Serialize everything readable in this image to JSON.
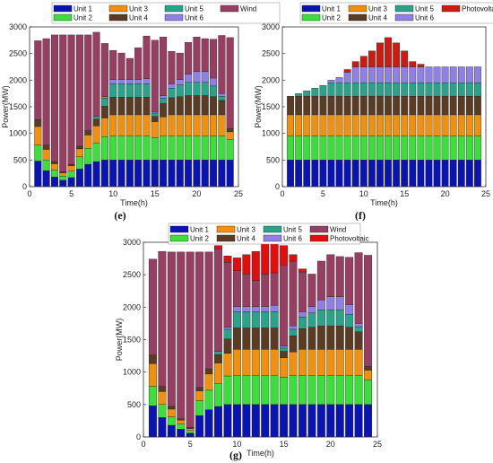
{
  "chart_data": [
    {
      "type": "bar",
      "stacked": true,
      "panel_label": "(e)",
      "xlabel": "Time(h)",
      "ylabel": "Power(MW)",
      "x": [
        1,
        2,
        3,
        4,
        5,
        6,
        7,
        8,
        9,
        10,
        11,
        12,
        13,
        14,
        15,
        16,
        17,
        18,
        19,
        20,
        21,
        22,
        23,
        24
      ],
      "xlim": [
        0,
        25
      ],
      "ylim": [
        0,
        3000
      ],
      "xticks": [
        "0",
        "5",
        "10",
        "15",
        "20",
        "25"
      ],
      "yticks": [
        "0",
        "500",
        "1000",
        "1500",
        "2000",
        "2500",
        "3000"
      ],
      "legend_entries": [
        "Unit 1",
        "Unit 2",
        "Unit 3",
        "Unit 4",
        "Unit 5",
        "Unit 6",
        "Wind"
      ],
      "legend_placement": "top",
      "series": [
        {
          "name": "Unit 1",
          "color": "#0a14b4",
          "values": [
            480,
            300,
            180,
            120,
            170,
            330,
            420,
            470,
            500,
            500,
            500,
            500,
            500,
            500,
            500,
            500,
            500,
            500,
            500,
            500,
            500,
            500,
            500,
            500
          ]
        },
        {
          "name": "Unit 2",
          "color": "#3adf3a",
          "values": [
            300,
            200,
            130,
            80,
            120,
            230,
            300,
            350,
            440,
            450,
            450,
            450,
            450,
            450,
            420,
            450,
            450,
            450,
            450,
            450,
            450,
            450,
            450,
            380
          ]
        },
        {
          "name": "Unit 3",
          "color": "#f0900c",
          "values": [
            350,
            200,
            120,
            60,
            100,
            150,
            250,
            320,
            350,
            400,
            400,
            400,
            400,
            400,
            300,
            360,
            400,
            400,
            400,
            400,
            400,
            400,
            400,
            150
          ]
        },
        {
          "name": "Unit 4",
          "color": "#5a3c24",
          "values": [
            130,
            80,
            40,
            20,
            30,
            50,
            80,
            130,
            220,
            330,
            330,
            330,
            330,
            330,
            100,
            250,
            320,
            340,
            360,
            360,
            360,
            340,
            270,
            60
          ]
        },
        {
          "name": "Unit 5",
          "color": "#29a389",
          "values": [
            0,
            0,
            0,
            0,
            0,
            0,
            0,
            50,
            150,
            250,
            250,
            250,
            250,
            250,
            50,
            100,
            180,
            220,
            250,
            250,
            250,
            200,
            80,
            0
          ]
        },
        {
          "name": "Unit 6",
          "color": "#8f7fe6",
          "values": [
            0,
            0,
            0,
            0,
            0,
            0,
            0,
            0,
            30,
            80,
            80,
            80,
            80,
            100,
            30,
            50,
            80,
            100,
            150,
            200,
            200,
            150,
            50,
            0
          ]
        },
        {
          "name": "Wind",
          "color": "#973e62",
          "values": [
            1480,
            2000,
            2380,
            2570,
            2430,
            2090,
            1800,
            1580,
            1000,
            550,
            500,
            400,
            600,
            800,
            1350,
            1100,
            610,
            500,
            600,
            650,
            620,
            730,
            1090,
            1710
          ]
        }
      ]
    },
    {
      "type": "bar",
      "stacked": true,
      "panel_label": "(f)",
      "xlabel": "Time(h)",
      "ylabel": "Power(MW)",
      "x": [
        1,
        2,
        3,
        4,
        5,
        6,
        7,
        8,
        9,
        10,
        11,
        12,
        13,
        14,
        15,
        16,
        17,
        18,
        19,
        20,
        21,
        22,
        23,
        24
      ],
      "xlim": [
        0,
        25
      ],
      "ylim": [
        0,
        3000
      ],
      "xticks": [
        "0",
        "5",
        "10",
        "15",
        "20",
        "25"
      ],
      "yticks": [
        "0",
        "500",
        "1000",
        "1500",
        "2000",
        "2500",
        "3000"
      ],
      "legend_entries": [
        "Unit 1",
        "Unit 2",
        "Unit 3",
        "Unit 4",
        "Unit 5",
        "Unit 6",
        "Photovoltaic"
      ],
      "legend_placement": "top",
      "series": [
        {
          "name": "Unit 1",
          "color": "#0a14b4",
          "values": [
            500,
            500,
            500,
            500,
            500,
            500,
            500,
            500,
            500,
            500,
            500,
            500,
            500,
            500,
            500,
            500,
            500,
            500,
            500,
            500,
            500,
            500,
            500,
            500
          ]
        },
        {
          "name": "Unit 2",
          "color": "#3adf3a",
          "values": [
            450,
            450,
            450,
            450,
            450,
            450,
            450,
            450,
            450,
            450,
            450,
            450,
            450,
            450,
            450,
            450,
            450,
            450,
            450,
            450,
            450,
            450,
            450,
            450
          ]
        },
        {
          "name": "Unit 3",
          "color": "#f0900c",
          "values": [
            400,
            400,
            400,
            400,
            400,
            400,
            400,
            400,
            400,
            400,
            400,
            400,
            400,
            400,
            400,
            400,
            400,
            400,
            400,
            400,
            400,
            400,
            400,
            400
          ]
        },
        {
          "name": "Unit 4",
          "color": "#5a3c24",
          "values": [
            350,
            350,
            350,
            350,
            350,
            350,
            350,
            350,
            350,
            350,
            350,
            350,
            350,
            350,
            350,
            350,
            350,
            350,
            350,
            350,
            350,
            350,
            350,
            350
          ]
        },
        {
          "name": "Unit 5",
          "color": "#29a389",
          "values": [
            0,
            50,
            100,
            150,
            200,
            250,
            250,
            250,
            250,
            250,
            250,
            250,
            250,
            250,
            250,
            250,
            250,
            250,
            250,
            250,
            250,
            250,
            250,
            250
          ]
        },
        {
          "name": "Unit 6",
          "color": "#8f7fe6",
          "values": [
            0,
            0,
            0,
            0,
            0,
            50,
            100,
            200,
            300,
            300,
            300,
            300,
            300,
            300,
            300,
            300,
            300,
            300,
            300,
            300,
            300,
            300,
            300,
            300
          ]
        },
        {
          "name": "Photovoltaic",
          "color": "#d01a10",
          "values": [
            0,
            0,
            0,
            0,
            0,
            0,
            0,
            50,
            100,
            200,
            300,
            450,
            550,
            450,
            300,
            100,
            50,
            0,
            0,
            0,
            0,
            0,
            0,
            0
          ]
        }
      ]
    },
    {
      "type": "bar",
      "stacked": true,
      "panel_label": "(g)",
      "xlabel": "Time(h)",
      "ylabel": "Power(MW)",
      "x": [
        1,
        2,
        3,
        4,
        5,
        6,
        7,
        8,
        9,
        10,
        11,
        12,
        13,
        14,
        15,
        16,
        17,
        18,
        19,
        20,
        21,
        22,
        23,
        24
      ],
      "xlim": [
        0,
        25
      ],
      "ylim": [
        0,
        3000
      ],
      "xticks": [
        "0",
        "5",
        "10",
        "15",
        "20",
        "25"
      ],
      "yticks": [
        "0",
        "500",
        "1000",
        "1500",
        "2000",
        "2500",
        "3000"
      ],
      "legend_entries": [
        "Unit 1",
        "Unit 2",
        "Unit 3",
        "Unit 4",
        "Unit 5",
        "Unit 6",
        "Wind",
        "Photovoltaic"
      ],
      "legend_placement": "top",
      "series": [
        {
          "name": "Unit 1",
          "color": "#0a14b4",
          "values": [
            480,
            300,
            180,
            120,
            60,
            330,
            420,
            470,
            500,
            500,
            500,
            500,
            500,
            500,
            500,
            500,
            500,
            500,
            500,
            500,
            500,
            500,
            500,
            500
          ]
        },
        {
          "name": "Unit 2",
          "color": "#3adf3a",
          "values": [
            300,
            200,
            130,
            80,
            40,
            230,
            300,
            350,
            440,
            450,
            450,
            450,
            450,
            450,
            420,
            450,
            450,
            450,
            450,
            450,
            450,
            450,
            450,
            380
          ]
        },
        {
          "name": "Unit 3",
          "color": "#f0900c",
          "values": [
            350,
            200,
            120,
            60,
            30,
            150,
            250,
            320,
            350,
            400,
            400,
            400,
            400,
            400,
            300,
            360,
            400,
            400,
            400,
            400,
            400,
            400,
            400,
            150
          ]
        },
        {
          "name": "Unit 4",
          "color": "#5a3c24",
          "values": [
            130,
            80,
            40,
            20,
            20,
            50,
            80,
            130,
            220,
            330,
            330,
            330,
            330,
            330,
            100,
            250,
            320,
            340,
            360,
            360,
            360,
            340,
            270,
            60
          ]
        },
        {
          "name": "Unit 5",
          "color": "#29a389",
          "values": [
            0,
            0,
            0,
            0,
            0,
            0,
            0,
            50,
            150,
            250,
            250,
            250,
            250,
            250,
            50,
            100,
            180,
            220,
            250,
            250,
            250,
            200,
            80,
            0
          ]
        },
        {
          "name": "Unit 6",
          "color": "#8f7fe6",
          "values": [
            0,
            0,
            0,
            0,
            0,
            0,
            0,
            0,
            30,
            80,
            80,
            80,
            80,
            100,
            30,
            50,
            80,
            100,
            150,
            200,
            200,
            150,
            50,
            0
          ]
        },
        {
          "name": "Wind",
          "color": "#973e62",
          "values": [
            1480,
            2080,
            2380,
            2570,
            2700,
            2090,
            1800,
            1580,
            1000,
            550,
            500,
            400,
            500,
            500,
            1250,
            1000,
            610,
            500,
            600,
            650,
            620,
            730,
            1090,
            1710
          ]
        },
        {
          "name": "Photovoltaic",
          "color": "#e40d0d",
          "values": [
            0,
            0,
            0,
            0,
            0,
            0,
            0,
            50,
            100,
            200,
            300,
            450,
            550,
            450,
            300,
            100,
            50,
            0,
            0,
            0,
            0,
            0,
            0,
            0
          ]
        }
      ]
    }
  ]
}
